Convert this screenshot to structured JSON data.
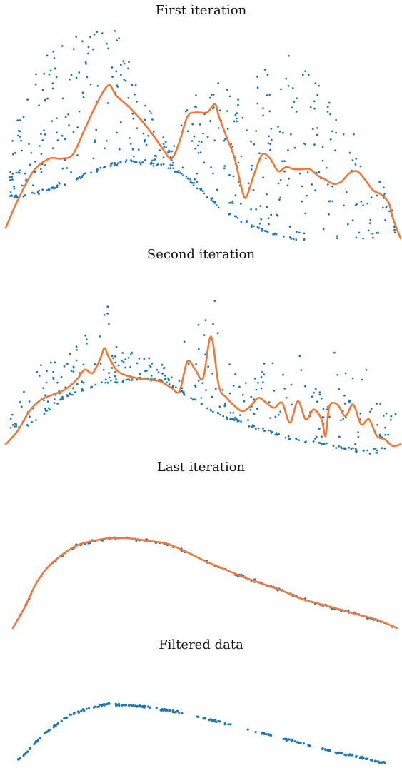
{
  "chart_data": [
    {
      "type": "scatter",
      "title": "First iteration",
      "xlabel": "",
      "ylabel": "",
      "xlim": [
        0,
        100
      ],
      "ylim": [
        0,
        100
      ],
      "grid": false,
      "colors": {
        "points": "#1f77b4",
        "fit": "#f07838"
      },
      "curve": [
        [
          0,
          5
        ],
        [
          3,
          18
        ],
        [
          7,
          32
        ],
        [
          11,
          38
        ],
        [
          14,
          38
        ],
        [
          17,
          40
        ],
        [
          20,
          52
        ],
        [
          23,
          64
        ],
        [
          26,
          73
        ],
        [
          28,
          68
        ],
        [
          31,
          63
        ],
        [
          34,
          57
        ],
        [
          37,
          50
        ],
        [
          40,
          42
        ],
        [
          42,
          38
        ],
        [
          44,
          46
        ],
        [
          46,
          58
        ],
        [
          48,
          60
        ],
        [
          51,
          60
        ],
        [
          53,
          64
        ],
        [
          54,
          58
        ],
        [
          56,
          48
        ],
        [
          58,
          38
        ],
        [
          60,
          22
        ],
        [
          61,
          20
        ],
        [
          63,
          31
        ],
        [
          65,
          40
        ],
        [
          67,
          38
        ],
        [
          69,
          32
        ],
        [
          71,
          34
        ],
        [
          73,
          33
        ],
        [
          75,
          33
        ],
        [
          77,
          33
        ],
        [
          79,
          30
        ],
        [
          81,
          28
        ],
        [
          83,
          26
        ],
        [
          85,
          27
        ],
        [
          87,
          31
        ],
        [
          89,
          32
        ],
        [
          91,
          28
        ],
        [
          93,
          23
        ],
        [
          95,
          21
        ],
        [
          97,
          17
        ],
        [
          98,
          10
        ],
        [
          100,
          0
        ]
      ],
      "dense_band": [
        [
          5,
          20
        ],
        [
          15,
          26
        ],
        [
          25,
          34
        ],
        [
          30,
          37
        ],
        [
          35,
          36
        ],
        [
          40,
          35
        ],
        [
          45,
          30
        ],
        [
          50,
          22
        ],
        [
          55,
          14
        ],
        [
          60,
          8
        ],
        [
          65,
          4
        ],
        [
          70,
          1
        ],
        [
          75,
          -1
        ],
        [
          85,
          -8
        ],
        [
          95,
          -14
        ],
        [
          98,
          -16
        ]
      ],
      "spread": [
        0.05,
        0.95
      ]
    },
    {
      "type": "scatter",
      "title": "Second iteration",
      "xlabel": "",
      "ylabel": "",
      "xlim": [
        0,
        100
      ],
      "ylim": [
        0,
        100
      ],
      "grid": false,
      "colors": {
        "points": "#1f77b4",
        "fit": "#f07838"
      },
      "curve": [
        [
          0,
          5
        ],
        [
          3,
          13
        ],
        [
          6,
          25
        ],
        [
          9,
          32
        ],
        [
          12,
          35
        ],
        [
          15,
          38
        ],
        [
          18,
          44
        ],
        [
          20,
          50
        ],
        [
          22,
          48
        ],
        [
          24,
          57
        ],
        [
          25,
          63
        ],
        [
          26,
          58
        ],
        [
          28,
          50
        ],
        [
          30,
          47
        ],
        [
          33,
          45
        ],
        [
          36,
          44
        ],
        [
          39,
          43
        ],
        [
          42,
          39
        ],
        [
          44,
          37
        ],
        [
          46,
          55
        ],
        [
          48,
          50
        ],
        [
          50,
          45
        ],
        [
          52,
          70
        ],
        [
          54,
          40
        ],
        [
          56,
          33
        ],
        [
          58,
          28
        ],
        [
          60,
          25
        ],
        [
          62,
          28
        ],
        [
          64,
          33
        ],
        [
          66,
          30
        ],
        [
          68,
          27
        ],
        [
          70,
          30
        ],
        [
          72,
          18
        ],
        [
          74,
          31
        ],
        [
          76,
          20
        ],
        [
          78,
          26
        ],
        [
          80,
          20
        ],
        [
          81,
          10
        ],
        [
          82,
          28
        ],
        [
          84,
          29
        ],
        [
          86,
          22
        ],
        [
          88,
          29
        ],
        [
          90,
          17
        ],
        [
          92,
          20
        ],
        [
          94,
          10
        ],
        [
          96,
          8
        ],
        [
          98,
          4
        ],
        [
          100,
          5
        ]
      ],
      "dense_band": [
        [
          5,
          15
        ],
        [
          15,
          34
        ],
        [
          25,
          42
        ],
        [
          35,
          45
        ],
        [
          40,
          43
        ],
        [
          45,
          36
        ],
        [
          50,
          28
        ],
        [
          55,
          22
        ],
        [
          60,
          18
        ],
        [
          65,
          14
        ],
        [
          70,
          10
        ],
        [
          75,
          7
        ],
        [
          85,
          3
        ],
        [
          95,
          -2
        ],
        [
          98,
          -3
        ]
      ],
      "spread": [
        0.2,
        0.8
      ]
    },
    {
      "type": "line",
      "title": "Last iteration",
      "xlabel": "",
      "ylabel": "",
      "xlim": [
        0,
        100
      ],
      "ylim": [
        0,
        100
      ],
      "grid": false,
      "colors": {
        "points": "#1f77b4",
        "fit": "#f07838"
      },
      "curve": [
        [
          0,
          0
        ],
        [
          3,
          15
        ],
        [
          6,
          33
        ],
        [
          9,
          45
        ],
        [
          13,
          55
        ],
        [
          17,
          62
        ],
        [
          21,
          65
        ],
        [
          25,
          67
        ],
        [
          30,
          67
        ],
        [
          35,
          65
        ],
        [
          40,
          63
        ],
        [
          45,
          57
        ],
        [
          50,
          50
        ],
        [
          55,
          44
        ],
        [
          60,
          38
        ],
        [
          65,
          33
        ],
        [
          70,
          28
        ],
        [
          75,
          22
        ],
        [
          80,
          18
        ],
        [
          85,
          14
        ],
        [
          90,
          10
        ],
        [
          95,
          6
        ],
        [
          100,
          0
        ]
      ],
      "dense_band": [
        [
          3,
          15
        ],
        [
          13,
          55
        ],
        [
          25,
          67
        ],
        [
          40,
          63
        ],
        [
          55,
          44
        ],
        [
          70,
          28
        ],
        [
          85,
          14
        ],
        [
          98,
          3
        ]
      ],
      "spread": [
        0,
        0
      ]
    },
    {
      "type": "scatter",
      "title": "Filtered data",
      "xlabel": "",
      "ylabel": "",
      "xlim": [
        0,
        100
      ],
      "ylim": [
        0,
        100
      ],
      "grid": false,
      "colors": {
        "points": "#1f77b4",
        "fit": "#f07838"
      },
      "dense_band": [
        [
          2,
          10
        ],
        [
          8,
          35
        ],
        [
          15,
          55
        ],
        [
          20,
          62
        ],
        [
          25,
          66
        ],
        [
          30,
          65
        ],
        [
          35,
          63
        ],
        [
          40,
          60
        ],
        [
          45,
          57
        ],
        [
          50,
          52
        ],
        [
          55,
          47
        ],
        [
          60,
          42
        ],
        [
          65,
          37
        ],
        [
          70,
          32
        ],
        [
          75,
          27
        ],
        [
          80,
          22
        ],
        [
          85,
          17
        ],
        [
          90,
          13
        ],
        [
          95,
          8
        ],
        [
          98,
          6
        ]
      ],
      "spread": [
        0,
        0
      ],
      "gaps": [
        [
          45,
          48
        ],
        [
          58,
          61
        ],
        [
          68,
          71
        ],
        [
          79,
          81
        ]
      ]
    }
  ]
}
